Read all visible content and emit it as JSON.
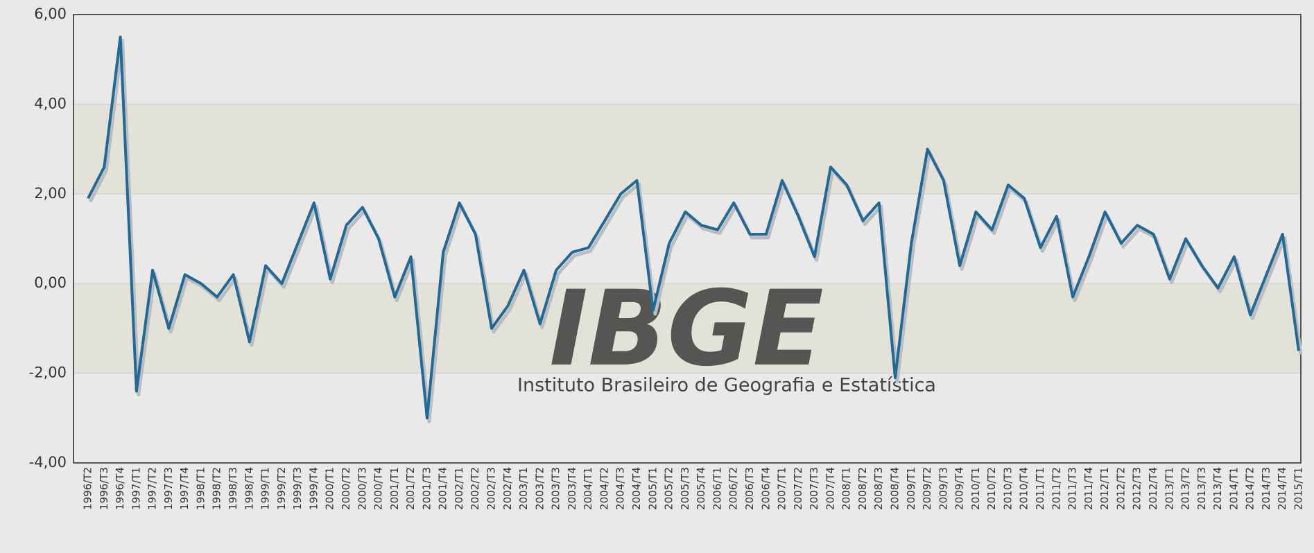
{
  "chart_data": {
    "type": "line",
    "watermark": {
      "logo": "IBGE",
      "name": "Instituto Brasileiro de Geografia e Estatística"
    },
    "categories": [
      "1996/T2",
      "1996/T3",
      "1996/T4",
      "1997/T1",
      "1997/T2",
      "1997/T3",
      "1997/T4",
      "1998/T1",
      "1998/T2",
      "1998/T3",
      "1998/T4",
      "1999/T1",
      "1999/T2",
      "1999/T3",
      "1999/T4",
      "2000/T1",
      "2000/T2",
      "2000/T3",
      "2000/T4",
      "2001/T1",
      "2001/T2",
      "2001/T3",
      "2001/T4",
      "2002/T1",
      "2002/T2",
      "2002/T3",
      "2002/T4",
      "2003/T1",
      "2003/T2",
      "2003/T3",
      "2003/T4",
      "2004/T1",
      "2004/T2",
      "2004/T3",
      "2004/T4",
      "2005/T1",
      "2005/T2",
      "2005/T3",
      "2005/T4",
      "2006/T1",
      "2006/T2",
      "2006/T3",
      "2006/T4",
      "2007/T1",
      "2007/T2",
      "2007/T3",
      "2007/T4",
      "2008/T1",
      "2008/T2",
      "2008/T3",
      "2008/T4",
      "2009/T1",
      "2009/T2",
      "2009/T3",
      "2009/T4",
      "2010/T1",
      "2010/T2",
      "2010/T3",
      "2010/T4",
      "2011/T1",
      "2011/T2",
      "2011/T3",
      "2011/T4",
      "2012/T1",
      "2012/T2",
      "2012/T3",
      "2012/T4",
      "2013/T1",
      "2013/T2",
      "2013/T3",
      "2013/T4",
      "2014/T1",
      "2014/T2",
      "2014/T3",
      "2014/T4",
      "2015/T1"
    ],
    "values": [
      1.9,
      2.6,
      5.5,
      -2.4,
      0.3,
      -1.0,
      0.2,
      0.0,
      -0.3,
      0.2,
      -1.3,
      0.4,
      0.0,
      0.9,
      1.8,
      0.1,
      1.3,
      1.7,
      1.0,
      -0.3,
      0.6,
      -3.0,
      0.7,
      1.8,
      1.1,
      -1.0,
      -0.5,
      0.3,
      -0.9,
      0.3,
      0.7,
      0.8,
      1.4,
      2.0,
      2.3,
      -0.6,
      0.9,
      1.6,
      1.3,
      1.2,
      1.8,
      1.1,
      1.1,
      2.3,
      1.5,
      0.6,
      2.6,
      2.2,
      1.4,
      1.8,
      -2.1,
      0.9,
      3.0,
      2.3,
      0.4,
      1.6,
      1.2,
      2.2,
      1.9,
      0.8,
      1.5,
      -0.3,
      0.6,
      1.6,
      0.9,
      1.3,
      1.1,
      0.1,
      1.0,
      0.4,
      -0.1,
      0.6,
      -0.7,
      0.2,
      1.1,
      -1.5
    ],
    "color": "#1f6a99",
    "ylim": [
      -4,
      6
    ],
    "yticks": [
      {
        "value": -4,
        "label": "-4,00"
      },
      {
        "value": -2,
        "label": "-2,00"
      },
      {
        "value": 0,
        "label": "0,00"
      },
      {
        "value": 2,
        "label": "2,00"
      },
      {
        "value": 4,
        "label": "4,00"
      },
      {
        "value": 6,
        "label": "6,00"
      }
    ],
    "grid": true
  }
}
